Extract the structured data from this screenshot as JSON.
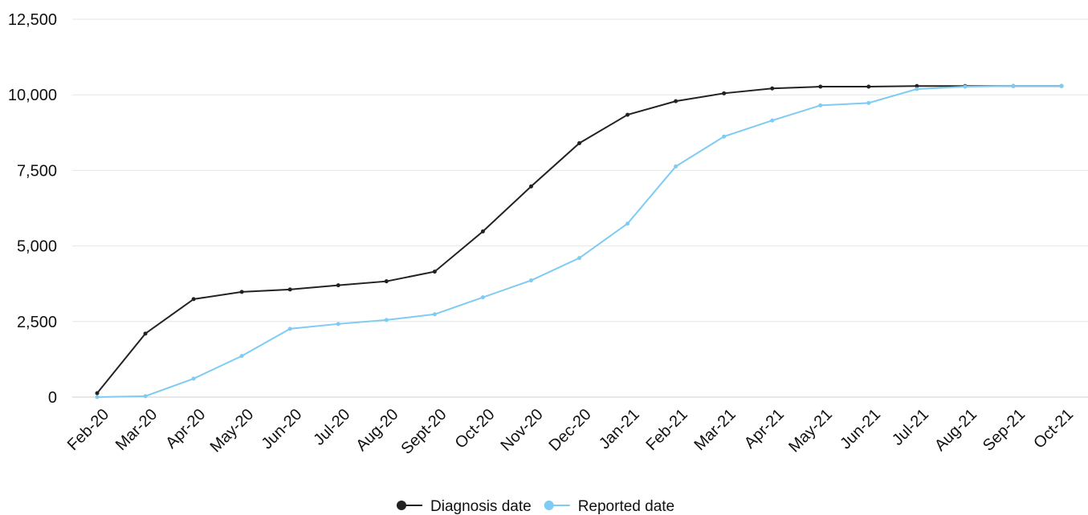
{
  "chart_data": {
    "type": "line",
    "categories": [
      "Feb-20",
      "Mar-20",
      "Apr-20",
      "May-20",
      "Jun-20",
      "Jul-20",
      "Aug-20",
      "Sept-20",
      "Oct-20",
      "Nov-20",
      "Dec-20",
      "Jan-21",
      "Feb-21",
      "Mar-21",
      "Apr-21",
      "May-21",
      "Jun-21",
      "Jul-21",
      "Aug-21",
      "Sep-21",
      "Oct-21"
    ],
    "series": [
      {
        "name": "Diagnosis date",
        "color": "#222222",
        "values": [
          130,
          2100,
          3240,
          3480,
          3560,
          3700,
          3830,
          4150,
          5480,
          6970,
          8400,
          9340,
          9790,
          10050,
          10210,
          10270,
          10270,
          10290,
          10290,
          10290,
          10290
        ]
      },
      {
        "name": "Reported date",
        "color": "#7ecbf3",
        "values": [
          0,
          30,
          610,
          1360,
          2260,
          2420,
          2550,
          2740,
          3300,
          3860,
          4600,
          5740,
          7630,
          8620,
          9150,
          9650,
          9730,
          10190,
          10270,
          10290,
          10290
        ]
      }
    ],
    "ylim": [
      0,
      12500
    ],
    "yticks": [
      0,
      {
        "value": 2500,
        "label": "2,500"
      },
      {
        "value": 5000,
        "label": "5,000"
      },
      {
        "value": 7500,
        "label": "7,500"
      },
      {
        "value": 10000,
        "label": "10,000"
      },
      {
        "value": 12500,
        "label": "12,500"
      }
    ],
    "grid": true,
    "legend": "bottom"
  }
}
